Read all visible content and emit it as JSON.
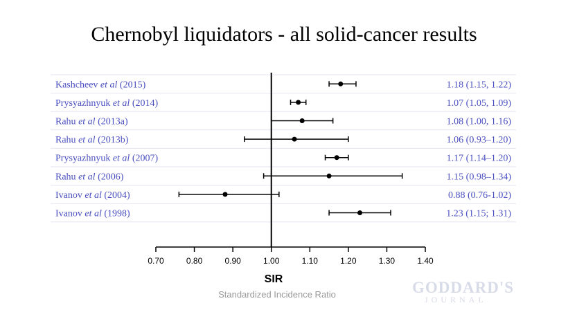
{
  "title": "Chernobyl liquidators - all solid-cancer results",
  "chart_data": {
    "type": "forest",
    "xlabel": "SIR",
    "subtitle": "Standardized Incidence Ratio",
    "xlim": [
      0.7,
      1.4
    ],
    "xticks": [
      "0.70",
      "0.80",
      "0.90",
      "1.00",
      "1.10",
      "1.20",
      "1.30",
      "1.40"
    ],
    "reference_line": 1.0,
    "studies": [
      {
        "author": "Kashcheev",
        "etal": "et al",
        "year": "(2015)",
        "estimate": 1.18,
        "lower": 1.15,
        "upper": 1.22,
        "ci_text": "1.18 (1.15, 1.22)"
      },
      {
        "author": "Prysyazhnyuk",
        "etal": "et al",
        "year": "(2014)",
        "estimate": 1.07,
        "lower": 1.05,
        "upper": 1.09,
        "ci_text": "1.07 (1.05, 1.09)"
      },
      {
        "author": "Rahu",
        "etal": "et al",
        "year": "(2013a)",
        "estimate": 1.08,
        "lower": 1.0,
        "upper": 1.16,
        "ci_text": "1.08 (1.00, 1.16)"
      },
      {
        "author": "Rahu",
        "etal": "et al",
        "year": "(2013b)",
        "estimate": 1.06,
        "lower": 0.93,
        "upper": 1.2,
        "ci_text": "1.06 (0.93–1.20)"
      },
      {
        "author": "Prysyazhnyuk",
        "etal": "et al",
        "year": "(2007)",
        "estimate": 1.17,
        "lower": 1.14,
        "upper": 1.2,
        "ci_text": "1.17 (1.14–1.20)"
      },
      {
        "author": "Rahu",
        "etal": "et al",
        "year": "(2006)",
        "estimate": 1.15,
        "lower": 0.98,
        "upper": 1.34,
        "ci_text": "1.15 (0.98–1.34)"
      },
      {
        "author": "Ivanov",
        "etal": "et al",
        "year": "(2004)",
        "estimate": 0.88,
        "lower": 0.76,
        "upper": 1.02,
        "ci_text": "0.88 (0.76-1.02)"
      },
      {
        "author": "Ivanov",
        "etal": "et al",
        "year": "(1998)",
        "estimate": 1.23,
        "lower": 1.15,
        "upper": 1.31,
        "ci_text": "1.23 (1.15; 1.31)"
      }
    ]
  },
  "logo": {
    "top": "GODDARD'S",
    "bottom": "JOURNAL"
  }
}
